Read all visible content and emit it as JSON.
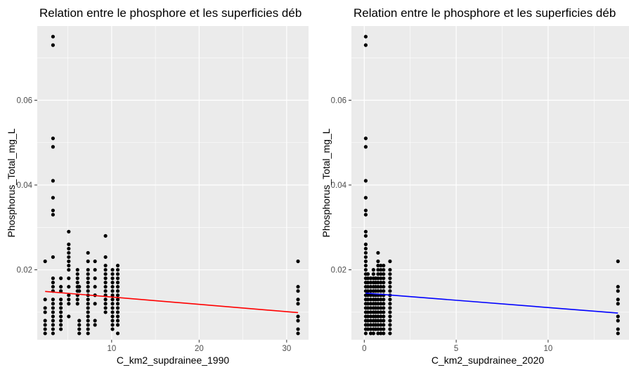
{
  "chart_data": [
    {
      "type": "scatter",
      "title": "Relation entre le phosphore et les superficies déb",
      "xlabel": "C_km2_supdrainee_1990",
      "ylabel": "Phosphorus_Total_mg_L",
      "xlim": [
        1.5,
        32.5
      ],
      "ylim": [
        0.0035,
        0.0775
      ],
      "x_ticks": [
        10,
        20,
        30
      ],
      "y_ticks": [
        0.02,
        0.04,
        0.06
      ],
      "x_tick_labels": [
        "10",
        "20",
        "30"
      ],
      "y_tick_labels": [
        "0.02",
        "0.04",
        "0.06"
      ],
      "grid": true,
      "points": [
        [
          2.4,
          0.005
        ],
        [
          2.4,
          0.006
        ],
        [
          2.4,
          0.007
        ],
        [
          2.4,
          0.008
        ],
        [
          2.4,
          0.01
        ],
        [
          2.4,
          0.011
        ],
        [
          2.4,
          0.013
        ],
        [
          2.4,
          0.022
        ],
        [
          3.3,
          0.005
        ],
        [
          3.3,
          0.006
        ],
        [
          3.3,
          0.007
        ],
        [
          3.3,
          0.008
        ],
        [
          3.3,
          0.009
        ],
        [
          3.3,
          0.01
        ],
        [
          3.3,
          0.011
        ],
        [
          3.3,
          0.012
        ],
        [
          3.3,
          0.013
        ],
        [
          3.3,
          0.015
        ],
        [
          3.3,
          0.016
        ],
        [
          3.3,
          0.017
        ],
        [
          3.3,
          0.018
        ],
        [
          3.3,
          0.023
        ],
        [
          3.3,
          0.033
        ],
        [
          3.3,
          0.034
        ],
        [
          3.3,
          0.037
        ],
        [
          3.3,
          0.041
        ],
        [
          3.3,
          0.049
        ],
        [
          3.3,
          0.051
        ],
        [
          3.3,
          0.073
        ],
        [
          3.3,
          0.075
        ],
        [
          4.2,
          0.006
        ],
        [
          4.2,
          0.007
        ],
        [
          4.2,
          0.008
        ],
        [
          4.2,
          0.009
        ],
        [
          4.2,
          0.01
        ],
        [
          4.2,
          0.011
        ],
        [
          4.2,
          0.012
        ],
        [
          4.2,
          0.013
        ],
        [
          4.2,
          0.015
        ],
        [
          4.2,
          0.016
        ],
        [
          4.2,
          0.018
        ],
        [
          5.1,
          0.009
        ],
        [
          5.1,
          0.012
        ],
        [
          5.1,
          0.013
        ],
        [
          5.1,
          0.014
        ],
        [
          5.1,
          0.016
        ],
        [
          5.1,
          0.018
        ],
        [
          5.1,
          0.02
        ],
        [
          5.1,
          0.021
        ],
        [
          5.1,
          0.022
        ],
        [
          5.1,
          0.023
        ],
        [
          5.1,
          0.024
        ],
        [
          5.1,
          0.025
        ],
        [
          5.1,
          0.026
        ],
        [
          5.1,
          0.029
        ],
        [
          6.1,
          0.012
        ],
        [
          6.1,
          0.013
        ],
        [
          6.1,
          0.014
        ],
        [
          6.1,
          0.015
        ],
        [
          6.1,
          0.016
        ],
        [
          6.1,
          0.017
        ],
        [
          6.1,
          0.018
        ],
        [
          6.1,
          0.019
        ],
        [
          6.1,
          0.02
        ],
        [
          6.3,
          0.005
        ],
        [
          6.3,
          0.006
        ],
        [
          6.3,
          0.007
        ],
        [
          6.3,
          0.008
        ],
        [
          6.3,
          0.015
        ],
        [
          6.3,
          0.016
        ],
        [
          7.3,
          0.005
        ],
        [
          7.3,
          0.006
        ],
        [
          7.3,
          0.007
        ],
        [
          7.3,
          0.008
        ],
        [
          7.3,
          0.009
        ],
        [
          7.3,
          0.01
        ],
        [
          7.3,
          0.011
        ],
        [
          7.3,
          0.012
        ],
        [
          7.3,
          0.013
        ],
        [
          7.3,
          0.014
        ],
        [
          7.3,
          0.015
        ],
        [
          7.3,
          0.016
        ],
        [
          7.3,
          0.017
        ],
        [
          7.3,
          0.018
        ],
        [
          7.3,
          0.019
        ],
        [
          7.3,
          0.02
        ],
        [
          7.3,
          0.022
        ],
        [
          7.3,
          0.024
        ],
        [
          8.1,
          0.007
        ],
        [
          8.1,
          0.008
        ],
        [
          8.1,
          0.012
        ],
        [
          8.1,
          0.014
        ],
        [
          8.1,
          0.016
        ],
        [
          8.1,
          0.018
        ],
        [
          8.1,
          0.02
        ],
        [
          8.1,
          0.022
        ],
        [
          9.3,
          0.01
        ],
        [
          9.3,
          0.011
        ],
        [
          9.3,
          0.012
        ],
        [
          9.3,
          0.013
        ],
        [
          9.3,
          0.014
        ],
        [
          9.3,
          0.015
        ],
        [
          9.3,
          0.016
        ],
        [
          9.3,
          0.017
        ],
        [
          9.3,
          0.018
        ],
        [
          9.3,
          0.019
        ],
        [
          9.3,
          0.02
        ],
        [
          9.3,
          0.021
        ],
        [
          9.3,
          0.023
        ],
        [
          9.3,
          0.028
        ],
        [
          10.1,
          0.006
        ],
        [
          10.1,
          0.007
        ],
        [
          10.1,
          0.008
        ],
        [
          10.1,
          0.009
        ],
        [
          10.1,
          0.01
        ],
        [
          10.1,
          0.011
        ],
        [
          10.1,
          0.012
        ],
        [
          10.1,
          0.013
        ],
        [
          10.1,
          0.014
        ],
        [
          10.1,
          0.015
        ],
        [
          10.1,
          0.016
        ],
        [
          10.1,
          0.017
        ],
        [
          10.1,
          0.018
        ],
        [
          10.1,
          0.019
        ],
        [
          10.1,
          0.02
        ],
        [
          10.7,
          0.005
        ],
        [
          10.7,
          0.007
        ],
        [
          10.7,
          0.008
        ],
        [
          10.7,
          0.009
        ],
        [
          10.7,
          0.01
        ],
        [
          10.7,
          0.011
        ],
        [
          10.7,
          0.012
        ],
        [
          10.7,
          0.013
        ],
        [
          10.7,
          0.014
        ],
        [
          10.7,
          0.015
        ],
        [
          10.7,
          0.016
        ],
        [
          10.7,
          0.017
        ],
        [
          10.7,
          0.018
        ],
        [
          10.7,
          0.019
        ],
        [
          10.7,
          0.02
        ],
        [
          10.7,
          0.021
        ],
        [
          31.3,
          0.005
        ],
        [
          31.3,
          0.006
        ],
        [
          31.3,
          0.008
        ],
        [
          31.3,
          0.009
        ],
        [
          31.3,
          0.012
        ],
        [
          31.3,
          0.013
        ],
        [
          31.3,
          0.015
        ],
        [
          31.3,
          0.016
        ],
        [
          31.3,
          0.022
        ]
      ],
      "trend_line": {
        "x": [
          2.4,
          31.3
        ],
        "y": [
          0.0149,
          0.0099
        ],
        "color": "#ff0000"
      },
      "colors": {
        "point": "#000000",
        "panel": "#ebebeb",
        "grid": "#ffffff"
      }
    },
    {
      "type": "scatter",
      "title": "Relation entre le phosphore et les superficies déb",
      "xlabel": "C_km2_supdrainee_2020",
      "ylabel": "Phosphorus_Total_mg_L",
      "xlim": [
        -0.7,
        14.4
      ],
      "ylim": [
        0.0035,
        0.0775
      ],
      "x_ticks": [
        0,
        5,
        10
      ],
      "y_ticks": [
        0.02,
        0.04,
        0.06
      ],
      "x_tick_labels": [
        "0",
        "5",
        "10"
      ],
      "y_tick_labels": [
        "0.02",
        "0.04",
        "0.06"
      ],
      "grid": true,
      "points": [
        [
          0.08,
          0.005
        ],
        [
          0.08,
          0.006
        ],
        [
          0.08,
          0.007
        ],
        [
          0.08,
          0.008
        ],
        [
          0.08,
          0.009
        ],
        [
          0.08,
          0.01
        ],
        [
          0.08,
          0.011
        ],
        [
          0.08,
          0.012
        ],
        [
          0.08,
          0.013
        ],
        [
          0.08,
          0.014
        ],
        [
          0.08,
          0.015
        ],
        [
          0.08,
          0.016
        ],
        [
          0.08,
          0.017
        ],
        [
          0.08,
          0.018
        ],
        [
          0.08,
          0.019
        ],
        [
          0.08,
          0.02
        ],
        [
          0.08,
          0.021
        ],
        [
          0.08,
          0.022
        ],
        [
          0.08,
          0.023
        ],
        [
          0.08,
          0.024
        ],
        [
          0.08,
          0.025
        ],
        [
          0.08,
          0.026
        ],
        [
          0.08,
          0.028
        ],
        [
          0.08,
          0.029
        ],
        [
          0.08,
          0.033
        ],
        [
          0.08,
          0.034
        ],
        [
          0.08,
          0.037
        ],
        [
          0.08,
          0.041
        ],
        [
          0.08,
          0.049
        ],
        [
          0.08,
          0.051
        ],
        [
          0.08,
          0.073
        ],
        [
          0.08,
          0.075
        ],
        [
          0.2,
          0.006
        ],
        [
          0.2,
          0.007
        ],
        [
          0.2,
          0.008
        ],
        [
          0.2,
          0.009
        ],
        [
          0.2,
          0.01
        ],
        [
          0.2,
          0.011
        ],
        [
          0.2,
          0.012
        ],
        [
          0.2,
          0.013
        ],
        [
          0.2,
          0.014
        ],
        [
          0.2,
          0.015
        ],
        [
          0.2,
          0.016
        ],
        [
          0.2,
          0.017
        ],
        [
          0.2,
          0.018
        ],
        [
          0.2,
          0.019
        ],
        [
          0.35,
          0.005
        ],
        [
          0.35,
          0.006
        ],
        [
          0.35,
          0.007
        ],
        [
          0.35,
          0.008
        ],
        [
          0.35,
          0.009
        ],
        [
          0.35,
          0.01
        ],
        [
          0.35,
          0.011
        ],
        [
          0.35,
          0.012
        ],
        [
          0.35,
          0.013
        ],
        [
          0.35,
          0.014
        ],
        [
          0.35,
          0.015
        ],
        [
          0.35,
          0.016
        ],
        [
          0.35,
          0.017
        ],
        [
          0.35,
          0.018
        ],
        [
          0.5,
          0.005
        ],
        [
          0.5,
          0.006
        ],
        [
          0.5,
          0.007
        ],
        [
          0.5,
          0.008
        ],
        [
          0.5,
          0.009
        ],
        [
          0.5,
          0.01
        ],
        [
          0.5,
          0.011
        ],
        [
          0.5,
          0.012
        ],
        [
          0.5,
          0.013
        ],
        [
          0.5,
          0.014
        ],
        [
          0.5,
          0.015
        ],
        [
          0.5,
          0.016
        ],
        [
          0.5,
          0.017
        ],
        [
          0.5,
          0.018
        ],
        [
          0.5,
          0.019
        ],
        [
          0.5,
          0.02
        ],
        [
          0.62,
          0.006
        ],
        [
          0.62,
          0.007
        ],
        [
          0.62,
          0.008
        ],
        [
          0.62,
          0.009
        ],
        [
          0.62,
          0.01
        ],
        [
          0.62,
          0.011
        ],
        [
          0.62,
          0.012
        ],
        [
          0.62,
          0.013
        ],
        [
          0.62,
          0.014
        ],
        [
          0.62,
          0.015
        ],
        [
          0.62,
          0.016
        ],
        [
          0.62,
          0.017
        ],
        [
          0.62,
          0.018
        ],
        [
          0.75,
          0.005
        ],
        [
          0.75,
          0.006
        ],
        [
          0.75,
          0.007
        ],
        [
          0.75,
          0.008
        ],
        [
          0.75,
          0.009
        ],
        [
          0.75,
          0.01
        ],
        [
          0.75,
          0.011
        ],
        [
          0.75,
          0.012
        ],
        [
          0.75,
          0.013
        ],
        [
          0.75,
          0.014
        ],
        [
          0.75,
          0.015
        ],
        [
          0.75,
          0.016
        ],
        [
          0.75,
          0.017
        ],
        [
          0.75,
          0.018
        ],
        [
          0.75,
          0.019
        ],
        [
          0.75,
          0.02
        ],
        [
          0.75,
          0.021
        ],
        [
          0.75,
          0.022
        ],
        [
          0.75,
          0.024
        ],
        [
          0.9,
          0.005
        ],
        [
          0.9,
          0.006
        ],
        [
          0.9,
          0.007
        ],
        [
          0.9,
          0.008
        ],
        [
          0.9,
          0.009
        ],
        [
          0.9,
          0.01
        ],
        [
          0.9,
          0.011
        ],
        [
          0.9,
          0.012
        ],
        [
          0.9,
          0.013
        ],
        [
          0.9,
          0.014
        ],
        [
          0.9,
          0.015
        ],
        [
          0.9,
          0.016
        ],
        [
          0.9,
          0.017
        ],
        [
          0.9,
          0.018
        ],
        [
          0.9,
          0.019
        ],
        [
          0.9,
          0.02
        ],
        [
          0.9,
          0.021
        ],
        [
          1.05,
          0.005
        ],
        [
          1.05,
          0.006
        ],
        [
          1.05,
          0.007
        ],
        [
          1.05,
          0.008
        ],
        [
          1.05,
          0.009
        ],
        [
          1.05,
          0.01
        ],
        [
          1.05,
          0.011
        ],
        [
          1.05,
          0.012
        ],
        [
          1.05,
          0.013
        ],
        [
          1.05,
          0.014
        ],
        [
          1.05,
          0.015
        ],
        [
          1.05,
          0.016
        ],
        [
          1.05,
          0.017
        ],
        [
          1.05,
          0.018
        ],
        [
          1.05,
          0.019
        ],
        [
          1.05,
          0.02
        ],
        [
          1.05,
          0.021
        ],
        [
          1.4,
          0.005
        ],
        [
          1.4,
          0.006
        ],
        [
          1.4,
          0.007
        ],
        [
          1.4,
          0.008
        ],
        [
          1.4,
          0.009
        ],
        [
          1.4,
          0.01
        ],
        [
          1.4,
          0.011
        ],
        [
          1.4,
          0.012
        ],
        [
          1.4,
          0.013
        ],
        [
          1.4,
          0.014
        ],
        [
          1.4,
          0.015
        ],
        [
          1.4,
          0.016
        ],
        [
          1.4,
          0.017
        ],
        [
          1.4,
          0.018
        ],
        [
          1.4,
          0.019
        ],
        [
          1.4,
          0.02
        ],
        [
          1.4,
          0.022
        ],
        [
          13.8,
          0.005
        ],
        [
          13.8,
          0.006
        ],
        [
          13.8,
          0.008
        ],
        [
          13.8,
          0.009
        ],
        [
          13.8,
          0.012
        ],
        [
          13.8,
          0.013
        ],
        [
          13.8,
          0.015
        ],
        [
          13.8,
          0.016
        ],
        [
          13.8,
          0.022
        ]
      ],
      "trend_line": {
        "x": [
          0.08,
          13.8
        ],
        "y": [
          0.0145,
          0.0098
        ],
        "color": "#0000ff"
      },
      "colors": {
        "point": "#000000",
        "panel": "#ebebeb",
        "grid": "#ffffff"
      }
    }
  ]
}
